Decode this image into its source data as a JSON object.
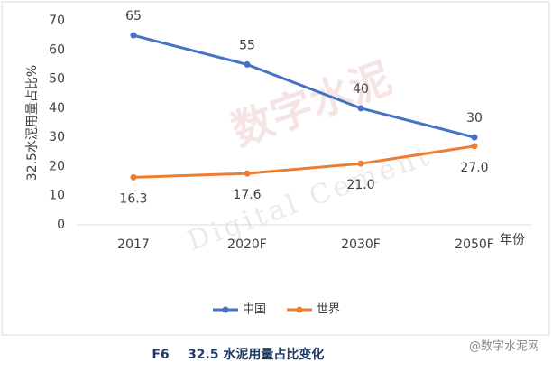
{
  "chart_data": {
    "type": "line",
    "y_label": "32.5水泥用量占比%",
    "x_label": "年份",
    "categories": [
      "2017",
      "2020F",
      "2030F",
      "2050F"
    ],
    "series": [
      {
        "name": "中国",
        "color": "#4472c4",
        "values": [
          65,
          55,
          40,
          30
        ]
      },
      {
        "name": "世界",
        "color": "#ed7d31",
        "values": [
          16.3,
          17.6,
          21.0,
          27.0
        ],
        "value_labels": [
          "16.3",
          "17.6",
          "21.0",
          "27.0"
        ]
      }
    ],
    "ylim": [
      0,
      70
    ],
    "yticks": [
      0,
      10,
      20,
      30,
      40,
      50,
      60,
      70
    ],
    "grid": false,
    "legend": "bottom",
    "caption_id": "F6",
    "caption": "32.5 水泥用量占比变化",
    "watermark": "数字水泥",
    "watermark_en": "Digital Cement",
    "source_mark": "@数字水泥网"
  }
}
